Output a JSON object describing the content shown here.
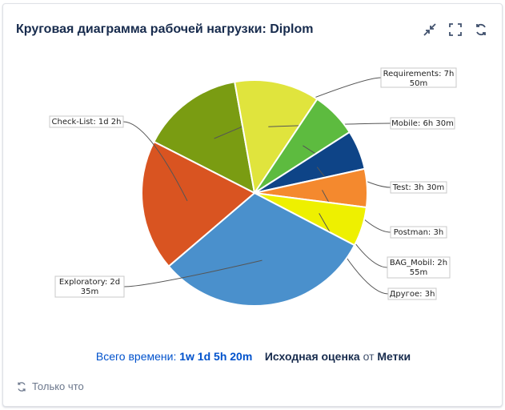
{
  "gadget": {
    "title": "Круговая диаграмма рабочей нагрузки: Diplom",
    "icons": [
      "collapse-icon",
      "fullscreen-icon",
      "refresh-icon"
    ]
  },
  "chart_data": {
    "type": "pie",
    "title": "",
    "slices": [
      {
        "label": "Requirements: 7h 50m",
        "value": 470,
        "color": "#7a9c12"
      },
      {
        "label": "Mobile: 6h 30m",
        "value": 390,
        "color": "#e0e43d"
      },
      {
        "label": "Test: 3h 30m",
        "value": 210,
        "color": "#5dbb3f"
      },
      {
        "label": "Postman: 3h",
        "value": 180,
        "color": "#0e4487"
      },
      {
        "label": "BAG_Mobil: 2h 55m",
        "value": 175,
        "color": "#f4892e"
      },
      {
        "label": "Другое: 3h",
        "value": 180,
        "color": "#eef000"
      },
      {
        "label": "Exploratory: 2d 35m",
        "value": 995,
        "color": "#4a90cc"
      },
      {
        "label": "Check-List: 1d 2h",
        "value": 600,
        "color": "#d95421"
      }
    ]
  },
  "summary": {
    "total_label": "Всего времени:",
    "total_value": "1w 1d 5h 20m",
    "estimate_label": "Исходная оценка",
    "from_word": "от",
    "source_label": "Метки"
  },
  "footer": {
    "updated_text": "Только что",
    "icon": "refresh-icon"
  }
}
